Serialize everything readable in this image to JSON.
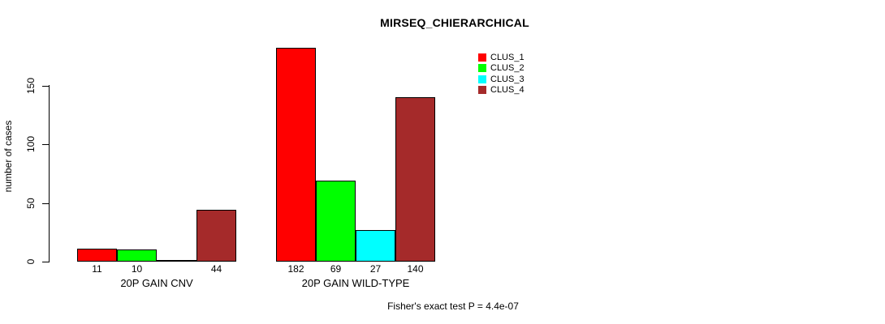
{
  "title": "MIRSEQ_CHIERARCHICAL",
  "annotation": "Fisher's exact test P = 4.4e-07",
  "chart_data": {
    "type": "bar",
    "title": "MIRSEQ_CHIERARCHICAL",
    "xlabel": "",
    "ylabel": "number of cases",
    "categories": [
      "20P GAIN CNV",
      "20P GAIN WILD-TYPE"
    ],
    "series": [
      {
        "name": "CLUS_1",
        "color": "#FF0000",
        "values": [
          11,
          182
        ]
      },
      {
        "name": "CLUS_2",
        "color": "#00FF00",
        "values": [
          10,
          69
        ]
      },
      {
        "name": "CLUS_3",
        "color": "#00FFFF",
        "values": [
          0,
          27
        ]
      },
      {
        "name": "CLUS_4",
        "color": "#A52A2A",
        "values": [
          44,
          140
        ]
      }
    ],
    "bar_labels": [
      [
        "11",
        "10",
        "",
        "44"
      ],
      [
        "182",
        "69",
        "27",
        "140"
      ]
    ],
    "yticks": [
      0,
      50,
      100,
      150
    ],
    "ylim": [
      0,
      187
    ],
    "grid": false,
    "legend_position": "top-right-inside",
    "legend_entries": [
      "CLUS_1",
      "CLUS_2",
      "CLUS_3",
      "CLUS_4"
    ],
    "colors": {
      "axis": "#000000",
      "text": "#000000",
      "background": "#ffffff"
    }
  }
}
